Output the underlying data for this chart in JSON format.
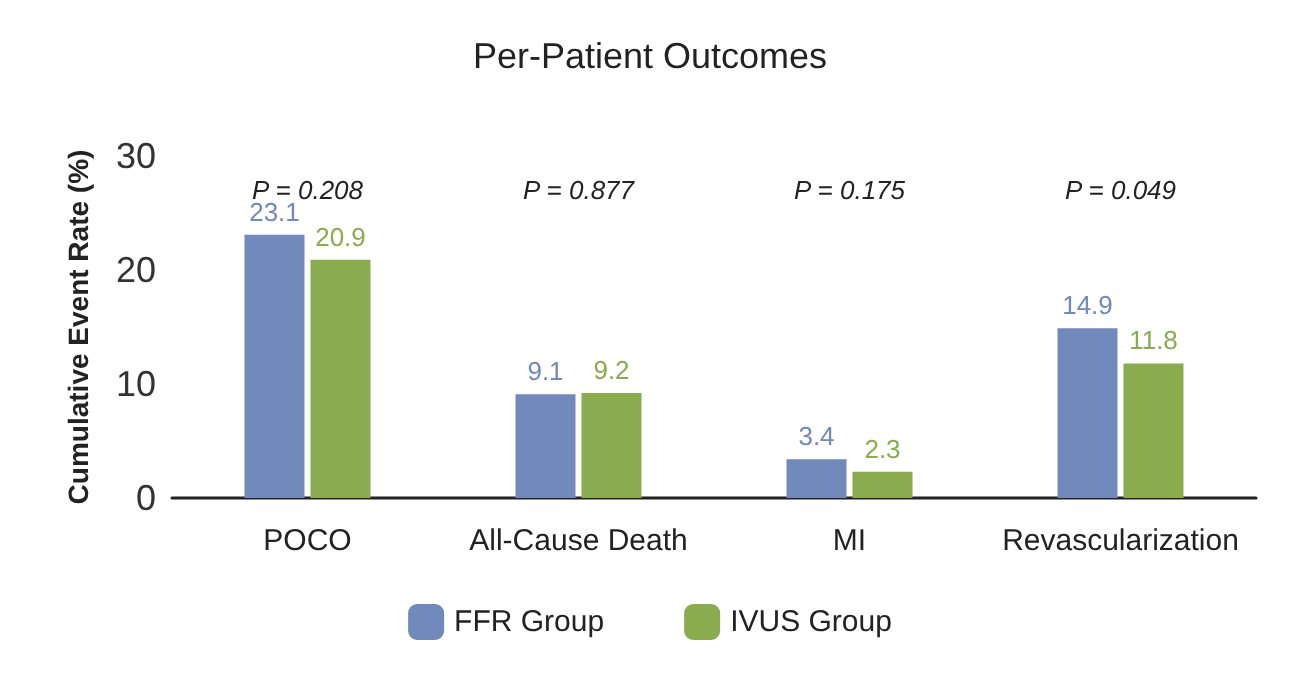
{
  "chart_data": {
    "type": "bar",
    "title": "Per-Patient Outcomes",
    "ylabel": "Cumulative Event Rate (%)",
    "categories": [
      "POCO",
      "All-Cause Death",
      "MI",
      "Revascularization"
    ],
    "series": [
      {
        "name": "FFR Group",
        "color": "#7189bb",
        "values": [
          23.1,
          9.1,
          3.4,
          14.9
        ]
      },
      {
        "name": "IVUS Group",
        "color": "#8aab4e",
        "values": [
          20.9,
          9.2,
          2.3,
          11.8
        ]
      }
    ],
    "ylim": [
      0,
      30
    ],
    "yticks": [
      0,
      10,
      20,
      30
    ],
    "grid": false,
    "legend": "bottom",
    "data_labels": true,
    "annotations": [
      "P = 0.208",
      "P = 0.877",
      "P = 0.175",
      "P = 0.049"
    ]
  }
}
